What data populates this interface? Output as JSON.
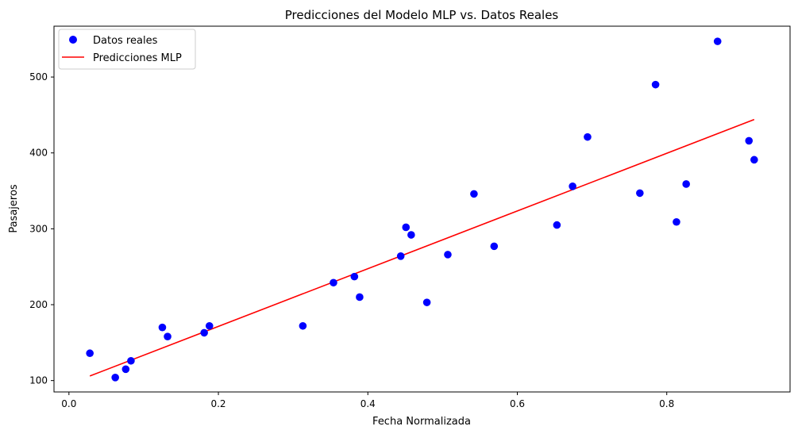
{
  "chart_data": {
    "type": "scatter",
    "title": "Predicciones del Modelo MLP vs. Datos Reales",
    "xlabel": "Fecha Normalizada",
    "ylabel": "Pasajeros",
    "xlim": [
      -0.02,
      0.965
    ],
    "ylim": [
      85,
      567
    ],
    "xticks": [
      0.0,
      0.2,
      0.4,
      0.6,
      0.8
    ],
    "xtick_labels": [
      "0.0",
      "0.2",
      "0.4",
      "0.6",
      "0.8"
    ],
    "yticks": [
      100,
      200,
      300,
      400,
      500
    ],
    "ytick_labels": [
      "100",
      "200",
      "300",
      "400",
      "500"
    ],
    "grid": false,
    "legend": {
      "position": "top-left"
    },
    "series": [
      {
        "name": "Datos reales",
        "kind": "scatter",
        "color": "#0000ff",
        "points": [
          [
            0.028,
            136
          ],
          [
            0.062,
            104
          ],
          [
            0.076,
            115
          ],
          [
            0.083,
            126
          ],
          [
            0.125,
            170
          ],
          [
            0.132,
            158
          ],
          [
            0.181,
            163
          ],
          [
            0.188,
            172
          ],
          [
            0.313,
            172
          ],
          [
            0.354,
            229
          ],
          [
            0.382,
            237
          ],
          [
            0.389,
            210
          ],
          [
            0.444,
            264
          ],
          [
            0.451,
            302
          ],
          [
            0.458,
            292
          ],
          [
            0.479,
            203
          ],
          [
            0.507,
            266
          ],
          [
            0.542,
            346
          ],
          [
            0.569,
            277
          ],
          [
            0.653,
            305
          ],
          [
            0.674,
            356
          ],
          [
            0.694,
            421
          ],
          [
            0.764,
            347
          ],
          [
            0.785,
            490
          ],
          [
            0.813,
            309
          ],
          [
            0.826,
            359
          ],
          [
            0.868,
            547
          ],
          [
            0.91,
            416
          ],
          [
            0.917,
            391
          ]
        ]
      },
      {
        "name": "Predicciones MLP",
        "kind": "line",
        "color": "#ff0000",
        "points": [
          [
            0.028,
            106
          ],
          [
            0.917,
            444
          ]
        ]
      }
    ]
  }
}
